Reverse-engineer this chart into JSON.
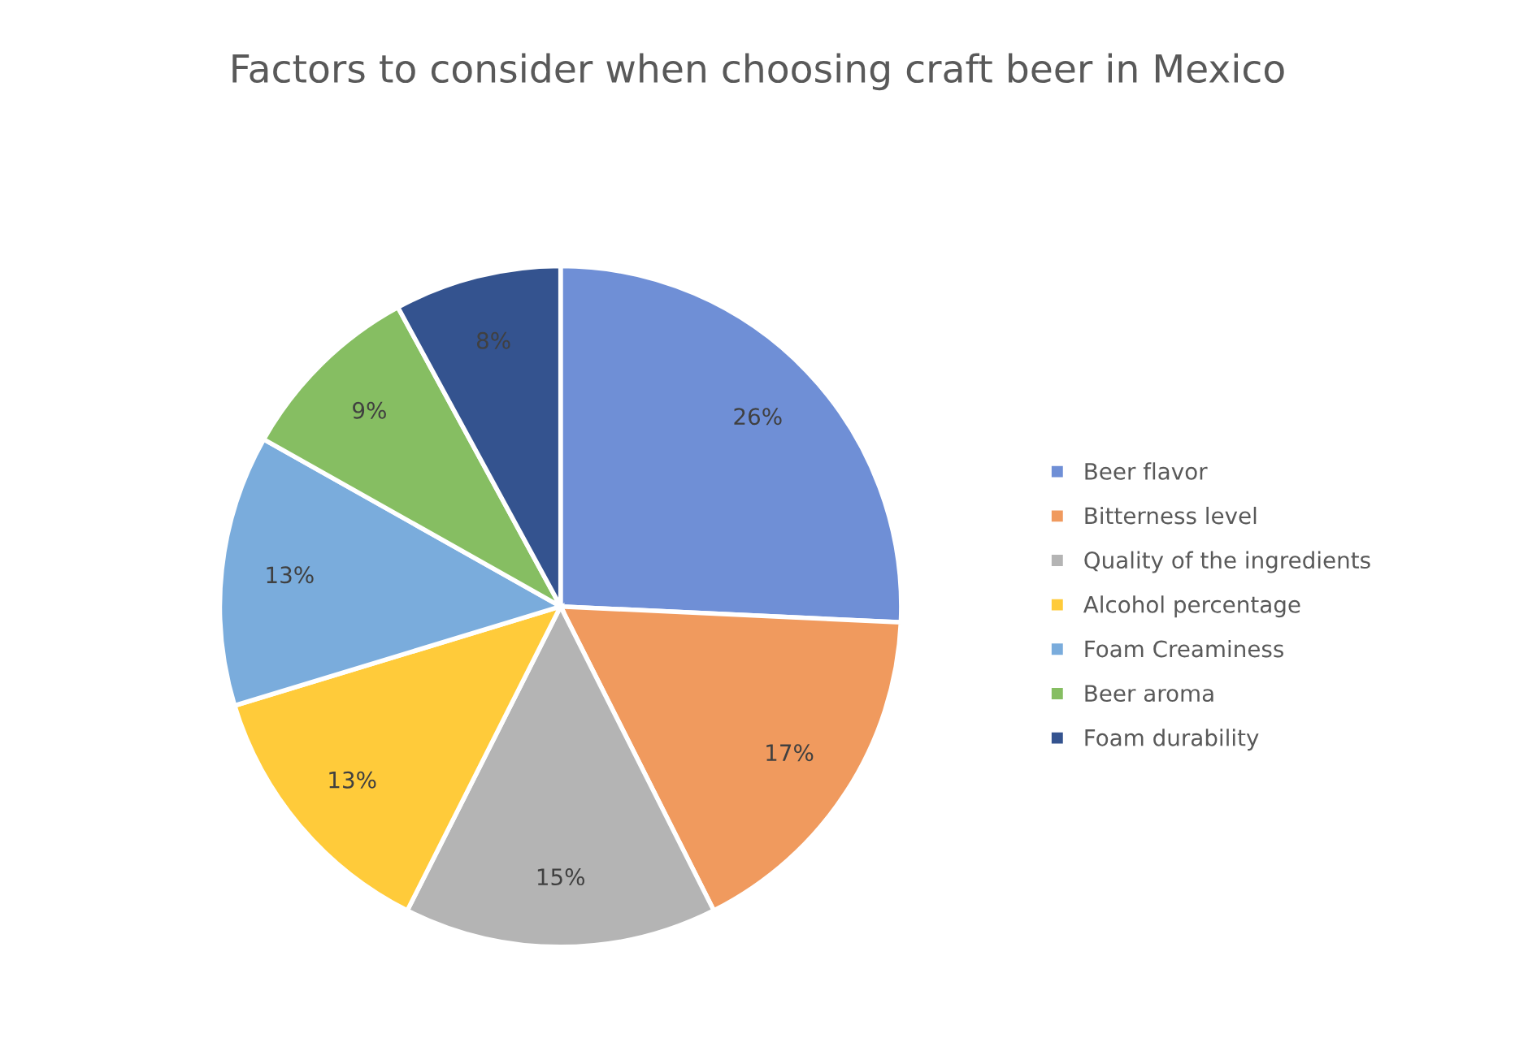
{
  "chart_data": {
    "type": "pie",
    "title": "Factors to consider when choosing craft beer in Mexico",
    "categories": [
      "Beer flavor",
      "Bitterness level",
      "Quality of the ingredients",
      "Alcohol percentage",
      "Foam Creaminess",
      "Beer aroma",
      "Foam durability"
    ],
    "values": [
      26,
      17,
      15,
      13,
      13,
      9,
      8
    ],
    "value_labels": [
      "26%",
      "17%",
      "15%",
      "13%",
      "13%",
      "9%",
      "8%"
    ],
    "colors": [
      "#6f8fd6",
      "#f09a5e",
      "#b4b4b4",
      "#ffcb3a",
      "#7aacdc",
      "#86be62",
      "#34538f"
    ],
    "legend": "right"
  }
}
